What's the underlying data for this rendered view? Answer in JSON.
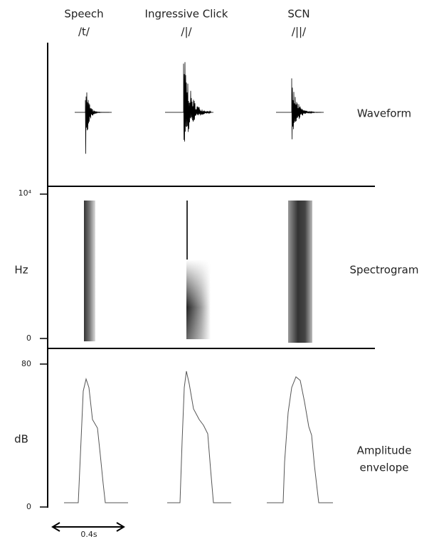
{
  "columns": [
    {
      "title": "Speech",
      "symbol": "/t/"
    },
    {
      "title": "Ingressive Click",
      "symbol": "/|/"
    },
    {
      "title": "SCN",
      "symbol": "/||/"
    }
  ],
  "rows": [
    {
      "label": "Waveform"
    },
    {
      "label": "Spectrogram",
      "axis": {
        "label": "Hz",
        "ticks": [
          "10⁴",
          "0"
        ]
      }
    },
    {
      "label": [
        "Amplitude",
        "envelope"
      ],
      "axis": {
        "label": "dB",
        "ticks": [
          "80",
          "0"
        ]
      }
    }
  ],
  "scale": "0.4s"
}
